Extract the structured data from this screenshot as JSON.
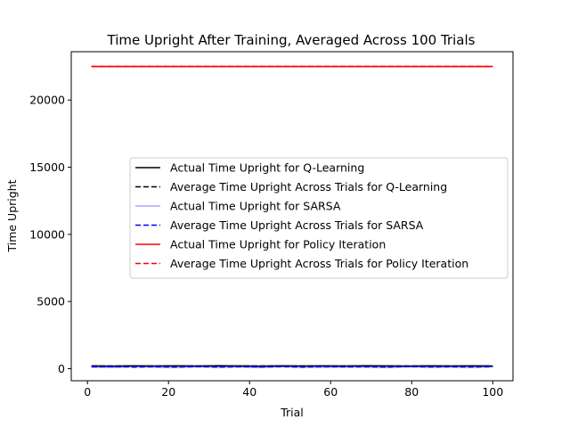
{
  "chart_data": {
    "type": "line",
    "title": "Time Upright After Training, Averaged Across 100 Trials",
    "xlabel": "Trial",
    "ylabel": "Time Upright",
    "xlim": [
      -4,
      105
    ],
    "ylim": [
      -900,
      23600
    ],
    "xticks": [
      0,
      20,
      40,
      60,
      80,
      100
    ],
    "yticks": [
      0,
      5000,
      10000,
      15000,
      20000
    ],
    "grid": false,
    "legend_position": "center-right",
    "series": [
      {
        "name": "Actual Time Upright for Q-Learning",
        "color": "#000000",
        "style": "solid",
        "opacity": 1,
        "x_range": [
          1,
          100
        ],
        "y": [
          200,
          185,
          210,
          195,
          205,
          190,
          215,
          200,
          185,
          210,
          195,
          205,
          190,
          215,
          200,
          185,
          210,
          195,
          205,
          190
        ]
      },
      {
        "name": "Average Time Upright Across Trials for Q-Learning",
        "color": "#000000",
        "style": "dashed",
        "opacity": 1,
        "x_range": [
          1,
          100
        ],
        "y": [
          200,
          200
        ]
      },
      {
        "name": "Actual Time Upright for SARSA",
        "color": "#0000ff",
        "style": "solid",
        "opacity": 0.35,
        "x_range": [
          1,
          100
        ],
        "y": [
          120,
          90,
          150,
          110,
          80,
          140,
          100,
          130,
          85,
          145,
          105,
          95,
          135,
          115,
          80,
          150,
          100,
          125,
          90,
          140
        ]
      },
      {
        "name": "Average Time Upright Across Trials for SARSA",
        "color": "#0000ff",
        "style": "dashed",
        "opacity": 1,
        "x_range": [
          1,
          100
        ],
        "y": [
          140,
          160,
          120,
          150,
          130,
          155,
          125,
          145,
          135,
          150,
          120,
          160,
          130,
          145,
          125,
          155,
          135,
          140,
          130,
          150
        ]
      },
      {
        "name": "Actual Time Upright for Policy Iteration",
        "color": "#ff0000",
        "style": "solid",
        "opacity": 1,
        "x_range": [
          1,
          100
        ],
        "y": [
          22500,
          22500
        ]
      },
      {
        "name": "Average Time Upright Across Trials for Policy Iteration",
        "color": "#ff0000",
        "style": "dashed",
        "opacity": 1,
        "x_range": [
          1,
          100
        ],
        "y": [
          22500,
          22500
        ]
      }
    ]
  }
}
